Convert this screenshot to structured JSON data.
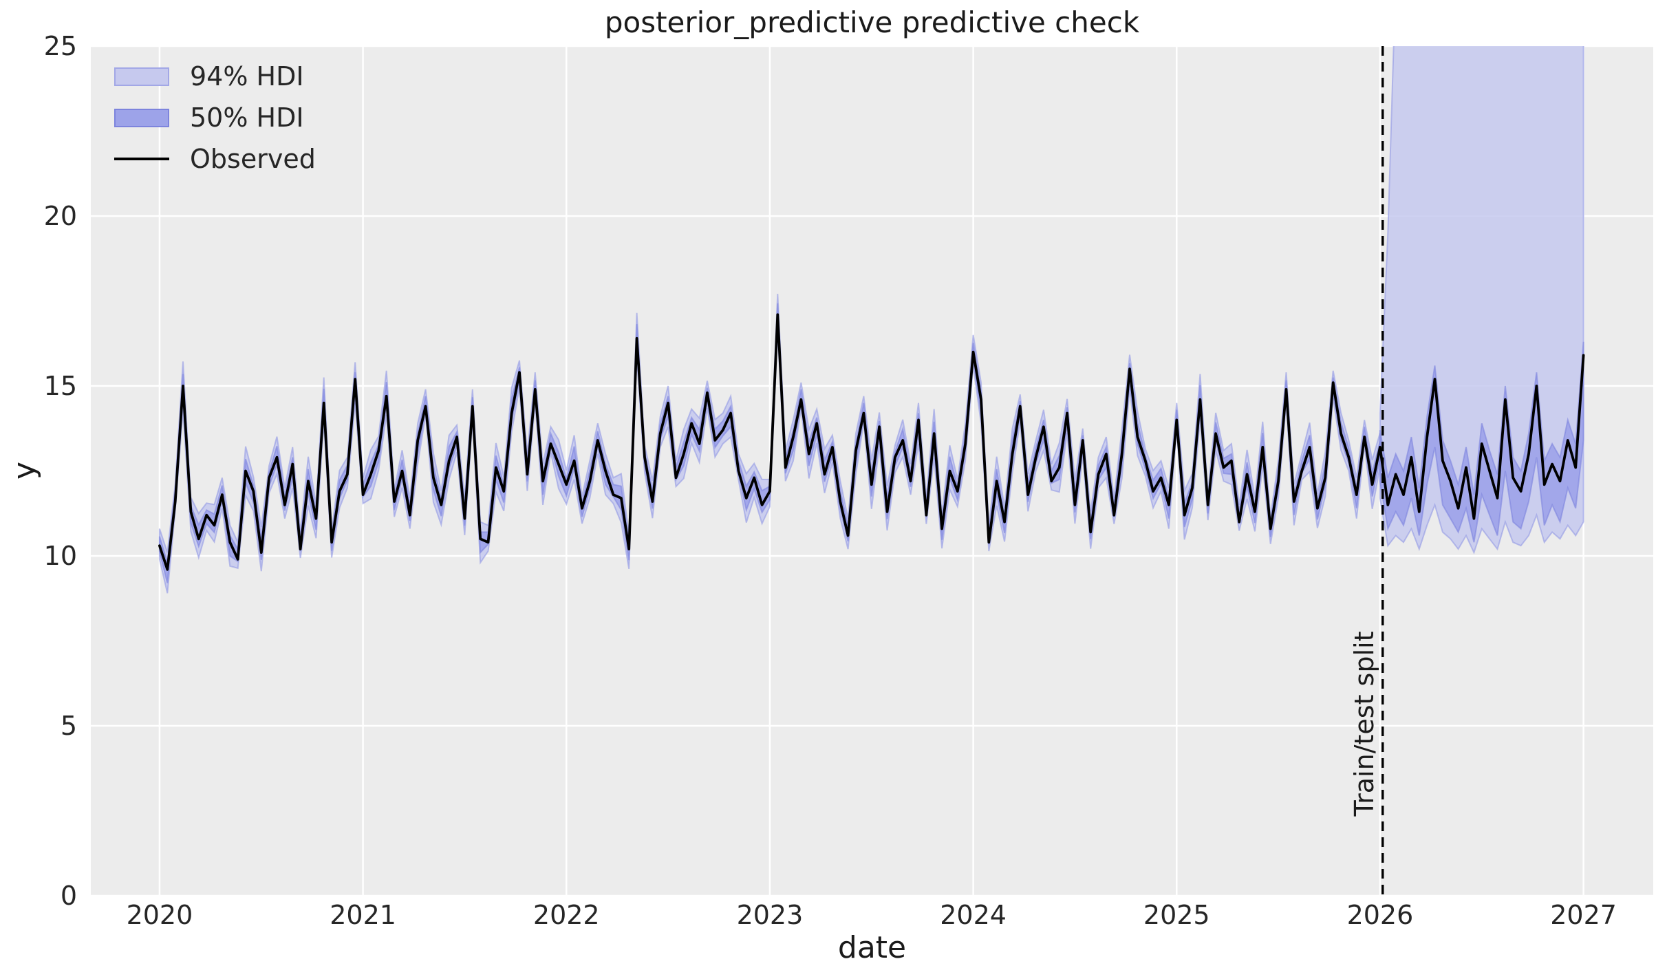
{
  "figure": {
    "title": "posterior_predictive predictive check",
    "xlabel": "date",
    "ylabel": "y",
    "background": "#ffffff",
    "axes_background": "#ececec",
    "grid_color": "#ffffff",
    "text_color": "#262626"
  },
  "legend": {
    "items": [
      {
        "label": "94% HDI",
        "type": "patch",
        "fill": "#c6c9ee",
        "edge": "#a2a7e6"
      },
      {
        "label": "50% HDI",
        "type": "patch",
        "fill": "#9da3e9",
        "edge": "#7d84dd"
      },
      {
        "label": "Observed",
        "type": "line",
        "color": "#000000"
      }
    ]
  },
  "split_marker": {
    "label": "Train/test split",
    "x": 2026.013,
    "color": "#000000",
    "style": "dashed"
  },
  "chart_data": {
    "type": "line",
    "title": "posterior_predictive predictive check",
    "xlabel": "date",
    "ylabel": "y",
    "x_range": [
      2019.662,
      2027.343
    ],
    "ylim": [
      0,
      25
    ],
    "x_ticks": [
      2020,
      2021,
      2022,
      2023,
      2024,
      2025,
      2026,
      2027
    ],
    "y_ticks": [
      0,
      5,
      10,
      15,
      20,
      25
    ],
    "grid": true,
    "legend_position": "upper left",
    "x_start": 2020,
    "points_per_year": 26,
    "observed": [
      10.3,
      9.6,
      11.6,
      15.0,
      11.3,
      10.5,
      11.2,
      10.9,
      11.8,
      10.4,
      9.9,
      12.5,
      11.9,
      10.1,
      12.3,
      12.9,
      11.5,
      12.7,
      10.2,
      12.2,
      11.1,
      14.5,
      10.4,
      11.9,
      12.4,
      15.2,
      11.8,
      12.4,
      13.1,
      14.7,
      11.6,
      12.5,
      11.2,
      13.4,
      14.4,
      12.3,
      11.5,
      12.8,
      13.5,
      11.1,
      14.4,
      10.5,
      10.4,
      12.6,
      11.9,
      14.2,
      15.4,
      12.4,
      14.9,
      12.2,
      13.3,
      12.7,
      12.1,
      12.8,
      11.4,
      12.2,
      13.4,
      12.5,
      11.8,
      11.7,
      10.2,
      16.4,
      12.9,
      11.6,
      13.6,
      14.5,
      12.3,
      13.0,
      13.9,
      13.3,
      14.8,
      13.4,
      13.7,
      14.2,
      12.5,
      11.7,
      12.3,
      11.5,
      11.9,
      17.1,
      12.6,
      13.5,
      14.6,
      13.0,
      13.9,
      12.4,
      13.2,
      11.6,
      10.6,
      13.1,
      14.2,
      12.1,
      13.8,
      11.3,
      12.9,
      13.4,
      12.2,
      14.0,
      11.2,
      13.6,
      10.8,
      12.5,
      11.9,
      13.3,
      16.0,
      14.6,
      10.4,
      12.2,
      11.0,
      13.0,
      14.4,
      11.8,
      12.9,
      13.8,
      12.2,
      12.6,
      14.2,
      11.5,
      13.4,
      10.7,
      12.4,
      13.0,
      11.2,
      13.0,
      15.5,
      13.5,
      12.8,
      11.9,
      12.3,
      11.5,
      14.0,
      11.2,
      12.0,
      14.6,
      11.5,
      13.6,
      12.6,
      12.8,
      11.0,
      12.4,
      11.3,
      13.2,
      10.8,
      12.2,
      14.9,
      11.6,
      12.5,
      13.2,
      11.4,
      12.3,
      15.1,
      13.6,
      12.9,
      11.8,
      13.5,
      12.1,
      13.2,
      11.5,
      12.4,
      11.8,
      12.9,
      11.3,
      13.5,
      15.2,
      12.8,
      12.2,
      11.4,
      12.6,
      11.1,
      13.3,
      12.5,
      11.7,
      14.6,
      12.3,
      11.9,
      13.0,
      15.0,
      12.1,
      12.7,
      12.2,
      13.4,
      12.6,
      15.9
    ],
    "train_band": {
      "end_index": 156,
      "w94_pattern": [
        0.45,
        0.6,
        0.38,
        0.72,
        0.5,
        0.65,
        0.4,
        0.55
      ],
      "w50_pattern": [
        0.22,
        0.3,
        0.18,
        0.35,
        0.25,
        0.32,
        0.2,
        0.27
      ],
      "center_offset_pattern": [
        0.05,
        -0.1,
        0.12,
        0,
        -0.08,
        0.1,
        -0.05,
        0.06
      ]
    },
    "test_band": {
      "x_start": 2026.0,
      "hdi94_hi": [
        14.2,
        19.5,
        27,
        28,
        28,
        28,
        28,
        28,
        28,
        28,
        28,
        28,
        28,
        28,
        28,
        28,
        28,
        28,
        28,
        28,
        28,
        28,
        28,
        28,
        28,
        28,
        28
      ],
      "hdi94_lo": [
        11.7,
        10.3,
        10.6,
        10.4,
        10.8,
        10.2,
        10.9,
        11.5,
        10.7,
        10.5,
        10.2,
        10.6,
        10.1,
        10.8,
        10.5,
        10.2,
        11.0,
        10.4,
        10.3,
        10.6,
        11.2,
        10.4,
        10.7,
        10.5,
        10.9,
        10.6,
        11.0
      ],
      "hdi50_hi": [
        13.7,
        12.3,
        13.0,
        12.5,
        13.5,
        12.0,
        14.1,
        15.6,
        13.4,
        12.8,
        12.1,
        13.2,
        11.8,
        13.9,
        13.1,
        12.4,
        15.0,
        12.9,
        12.5,
        13.6,
        15.4,
        12.8,
        13.3,
        12.9,
        14.0,
        13.3,
        16.3
      ],
      "hdi50_lo": [
        12.2,
        10.8,
        11.3,
        10.9,
        11.7,
        10.6,
        12.1,
        13.2,
        11.5,
        11.1,
        10.7,
        11.4,
        10.4,
        11.8,
        11.2,
        10.6,
        12.5,
        11.0,
        10.8,
        11.6,
        12.9,
        10.9,
        11.5,
        11.0,
        12.0,
        11.4,
        13.4
      ]
    },
    "colors": {
      "hdi94_fill": "#c6c9ee",
      "hdi94_edge": "#9399e4",
      "hdi50_fill": "#9da3e9",
      "hdi50_edge": "#7d84dd",
      "observed_line": "#000000"
    }
  }
}
